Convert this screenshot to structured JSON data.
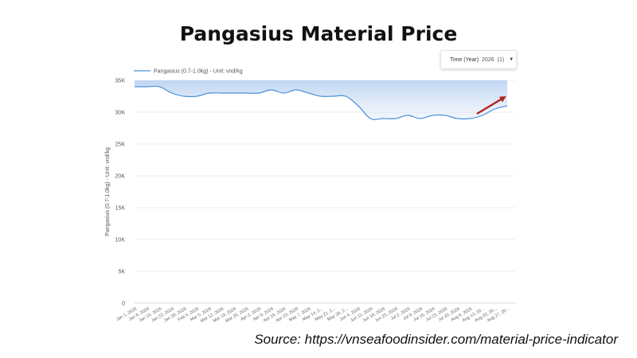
{
  "title": "Pangasius Material Price",
  "source": "Source: https://vnseafoodinsider.com/material-price-indicator",
  "filter": {
    "label": "Time (Year)",
    "value": "2026",
    "count": "(1)"
  },
  "colors": {
    "line": "#4a90d9",
    "area_top": "#bcd3f2",
    "grid": "#e6e6e6",
    "arrow": "#b22222"
  },
  "chart_data": {
    "type": "area",
    "legend": "Pangasius (0.7-1.0kg) - Unit: vnd/kg",
    "legend_position": "top-left",
    "ylabel": "Pangasius (0.7-1.0kg) - Unit: vnd/kg",
    "xlabel": "",
    "ylim": [
      0,
      35000
    ],
    "yticks": [
      0,
      5000,
      10000,
      15000,
      20000,
      25000,
      30000,
      35000
    ],
    "ytick_labels": [
      "0",
      "5K",
      "10K",
      "15K",
      "20K",
      "25K",
      "30K",
      "35K"
    ],
    "grid": true,
    "x_tick_labels": [
      "Jan 1, 2026",
      "Jan 8, 2026",
      "Jan 15, 2026",
      "Jan 22, 2026",
      "Jan 29, 2026",
      "Feb 5, 2026",
      "Mar 5, 2026",
      "Mar 12, 2026",
      "Mar 19, 2026",
      "Mar 26, 2026",
      "Apr 2, 2026",
      "Apr 9, 2026",
      "Apr 16, 2026",
      "Apr 23, 2026",
      "May 7, 2026",
      "May 14, 2...",
      "May 21, 2...",
      "May 28, 2...",
      "Jun 4, 2026",
      "Jun 11, 2026",
      "Jun 18, 2026",
      "Jun 25, 2026",
      "Jul 2, 2026",
      "Jul 9, 2026",
      "Jul 16, 2026",
      "Jul 23, 2026",
      "Jul 30, 2026",
      "Aug 6, 2026",
      "Aug 13, 20...",
      "Aug 20, 20...",
      "Aug 27, 20..."
    ],
    "series": [
      {
        "name": "Pangasius (0.7-1.0kg) - Unit: vnd/kg",
        "values": [
          34000,
          34000,
          34000,
          33000,
          32500,
          32500,
          33000,
          33000,
          33000,
          33000,
          33000,
          33500,
          33000,
          33500,
          33000,
          32500,
          32500,
          32500,
          31000,
          29000,
          29000,
          29000,
          29500,
          29000,
          29500,
          29500,
          29000,
          29000,
          29500,
          30500,
          31000
        ]
      }
    ]
  }
}
